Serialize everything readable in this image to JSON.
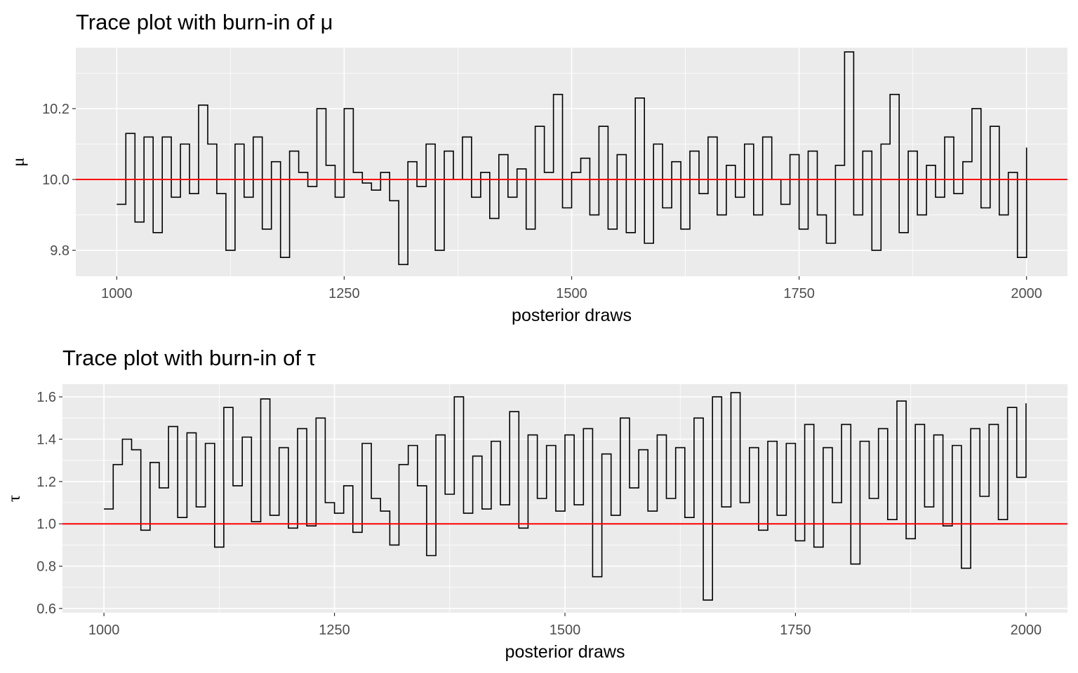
{
  "chart_data": [
    {
      "type": "line",
      "title": "Trace plot with burn-in of μ",
      "xlabel": "posterior draws",
      "ylabel": "μ",
      "xlim": [
        955,
        2045
      ],
      "ylim": [
        9.727,
        10.372
      ],
      "xticks": [
        1000,
        1250,
        1500,
        1750,
        2000
      ],
      "xtick_labels": [
        "1000",
        "1250",
        "1500",
        "1750",
        "2000"
      ],
      "yticks": [
        9.8,
        10.0,
        10.2
      ],
      "ytick_labels": [
        "9.8",
        "10.0",
        "10.2"
      ],
      "reference_line": {
        "y": 10.0,
        "color": "#ff0000"
      },
      "grid": true,
      "panel_background": "#ebebeb",
      "line_color": "#000000",
      "series": [
        {
          "x": [
            1000,
            1010,
            1020,
            1030,
            1040,
            1050,
            1060,
            1070,
            1080,
            1090,
            1100,
            1110,
            1120,
            1130,
            1140,
            1150,
            1160,
            1170,
            1180,
            1190,
            1200,
            1210,
            1220,
            1230,
            1240,
            1250,
            1260,
            1270,
            1280,
            1290,
            1300,
            1310,
            1320,
            1330,
            1340,
            1350,
            1360,
            1370,
            1380,
            1390,
            1400,
            1410,
            1420,
            1430,
            1440,
            1450,
            1460,
            1470,
            1480,
            1490,
            1500,
            1510,
            1520,
            1530,
            1540,
            1550,
            1560,
            1570,
            1580,
            1590,
            1600,
            1610,
            1620,
            1630,
            1640,
            1650,
            1660,
            1670,
            1680,
            1690,
            1700,
            1710,
            1720,
            1730,
            1740,
            1750,
            1760,
            1770,
            1780,
            1790,
            1800,
            1810,
            1820,
            1830,
            1840,
            1850,
            1860,
            1870,
            1880,
            1890,
            1900,
            1910,
            1920,
            1930,
            1940,
            1950,
            1960,
            1970,
            1980,
            1990,
            2000
          ],
          "y": [
            9.93,
            10.13,
            9.88,
            10.12,
            9.85,
            10.12,
            9.95,
            10.1,
            9.96,
            10.21,
            10.1,
            9.96,
            9.8,
            10.1,
            9.95,
            10.12,
            9.86,
            10.05,
            9.78,
            10.08,
            10.02,
            9.98,
            10.2,
            10.04,
            9.95,
            10.2,
            10.02,
            9.99,
            9.97,
            10.02,
            9.94,
            9.76,
            10.05,
            9.98,
            10.1,
            9.8,
            10.08,
            10.0,
            10.12,
            9.95,
            10.02,
            9.89,
            10.07,
            9.95,
            10.03,
            9.86,
            10.15,
            10.02,
            10.24,
            9.92,
            10.02,
            10.06,
            9.9,
            10.15,
            9.86,
            10.07,
            9.85,
            10.23,
            9.82,
            10.1,
            9.92,
            10.05,
            9.86,
            10.08,
            9.96,
            10.12,
            9.9,
            10.04,
            9.95,
            10.1,
            9.9,
            10.12,
            10.0,
            9.93,
            10.07,
            9.86,
            10.08,
            9.9,
            9.82,
            10.04,
            10.36,
            9.9,
            10.08,
            9.8,
            10.1,
            10.24,
            9.85,
            10.08,
            9.9,
            10.04,
            9.95,
            10.12,
            9.96,
            10.05,
            10.2,
            9.92,
            10.15,
            9.9,
            10.02,
            9.78,
            10.09
          ]
        }
      ]
    },
    {
      "type": "line",
      "title": "Trace plot with burn-in of τ",
      "xlabel": "posterior draws",
      "ylabel": "τ",
      "xlim": [
        955,
        2045
      ],
      "ylim": [
        0.58,
        1.66
      ],
      "xticks": [
        1000,
        1250,
        1500,
        1750,
        2000
      ],
      "xtick_labels": [
        "1000",
        "1250",
        "1500",
        "1750",
        "2000"
      ],
      "yticks": [
        0.6,
        0.8,
        1.0,
        1.2,
        1.4,
        1.6
      ],
      "ytick_labels": [
        "0.6",
        "0.8",
        "1.0",
        "1.2",
        "1.4",
        "1.6"
      ],
      "reference_line": {
        "y": 1.0,
        "color": "#ff0000"
      },
      "grid": true,
      "panel_background": "#ebebeb",
      "line_color": "#000000",
      "series": [
        {
          "x": [
            1000,
            1010,
            1020,
            1030,
            1040,
            1050,
            1060,
            1070,
            1080,
            1090,
            1100,
            1110,
            1120,
            1130,
            1140,
            1150,
            1160,
            1170,
            1180,
            1190,
            1200,
            1210,
            1220,
            1230,
            1240,
            1250,
            1260,
            1270,
            1280,
            1290,
            1300,
            1310,
            1320,
            1330,
            1340,
            1350,
            1360,
            1370,
            1380,
            1390,
            1400,
            1410,
            1420,
            1430,
            1440,
            1450,
            1460,
            1470,
            1480,
            1490,
            1500,
            1510,
            1520,
            1530,
            1540,
            1550,
            1560,
            1570,
            1580,
            1590,
            1600,
            1610,
            1620,
            1630,
            1640,
            1650,
            1660,
            1670,
            1680,
            1690,
            1700,
            1710,
            1720,
            1730,
            1740,
            1750,
            1760,
            1770,
            1780,
            1790,
            1800,
            1810,
            1820,
            1830,
            1840,
            1850,
            1860,
            1870,
            1880,
            1890,
            1900,
            1910,
            1920,
            1930,
            1940,
            1950,
            1960,
            1970,
            1980,
            1990,
            2000
          ],
          "y": [
            1.07,
            1.28,
            1.4,
            1.35,
            0.97,
            1.29,
            1.17,
            1.46,
            1.03,
            1.43,
            1.08,
            1.38,
            0.89,
            1.55,
            1.18,
            1.41,
            1.01,
            1.59,
            1.04,
            1.36,
            0.98,
            1.45,
            0.99,
            1.5,
            1.1,
            1.05,
            1.18,
            0.96,
            1.38,
            1.12,
            1.06,
            0.9,
            1.28,
            1.37,
            1.18,
            0.85,
            1.42,
            1.14,
            1.6,
            1.05,
            1.32,
            1.07,
            1.39,
            1.09,
            1.53,
            0.98,
            1.42,
            1.12,
            1.37,
            1.06,
            1.42,
            1.09,
            1.45,
            0.75,
            1.33,
            1.04,
            1.5,
            1.17,
            1.35,
            1.06,
            1.42,
            1.12,
            1.36,
            1.03,
            1.5,
            0.64,
            1.6,
            1.08,
            1.62,
            1.1,
            1.36,
            0.97,
            1.39,
            1.04,
            1.38,
            0.92,
            1.47,
            0.89,
            1.36,
            1.1,
            1.47,
            0.81,
            1.39,
            1.12,
            1.45,
            1.02,
            1.58,
            0.93,
            1.47,
            1.08,
            1.42,
            0.99,
            1.37,
            0.79,
            1.45,
            1.13,
            1.47,
            1.02,
            1.55,
            1.22,
            1.57
          ]
        }
      ]
    }
  ]
}
